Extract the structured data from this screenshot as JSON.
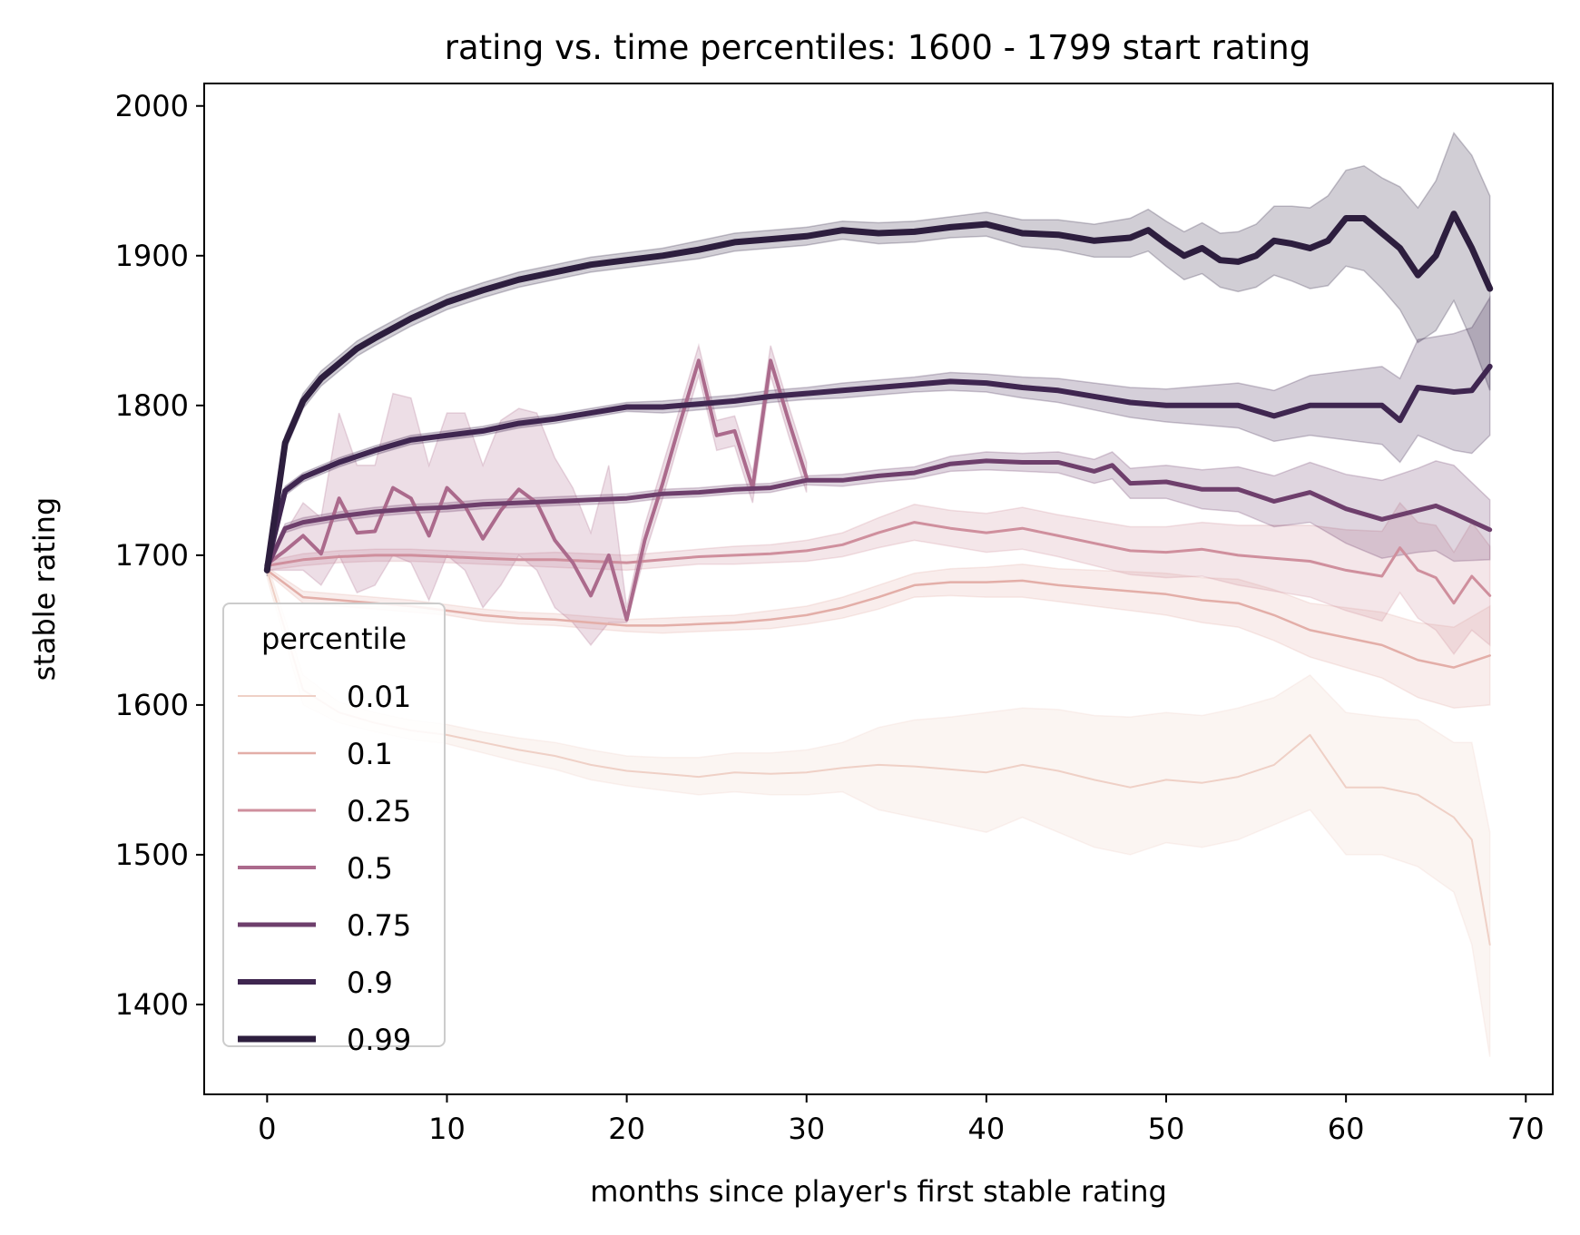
{
  "chart_data": {
    "type": "line",
    "title": "rating vs. time percentiles: 1600 - 1799 start rating",
    "xlabel": "months since player's first stable rating",
    "ylabel": "stable rating",
    "xlim": [
      -3.5,
      71.5
    ],
    "ylim": [
      1340,
      2015
    ],
    "x_ticks": [
      0,
      10,
      20,
      30,
      40,
      50,
      60,
      70
    ],
    "y_ticks": [
      1400,
      1500,
      1600,
      1700,
      1800,
      1900,
      2000
    ],
    "grid": false,
    "legend": {
      "title": "percentile",
      "placement": "lower-left"
    },
    "series": [
      {
        "name": "0.01",
        "color": "#efd0c6",
        "width": 2.0,
        "x": [
          0,
          2,
          4,
          6,
          8,
          10,
          12,
          14,
          16,
          18,
          20,
          22,
          24,
          26,
          28,
          30,
          32,
          34,
          36,
          38,
          40,
          42,
          44,
          46,
          48,
          50,
          52,
          54,
          56,
          58,
          60,
          62,
          64,
          66,
          67,
          68
        ],
        "y": [
          1690,
          1610,
          1595,
          1588,
          1583,
          1580,
          1575,
          1570,
          1566,
          1560,
          1556,
          1554,
          1552,
          1555,
          1554,
          1555,
          1558,
          1560,
          1559,
          1557,
          1555,
          1560,
          1556,
          1550,
          1545,
          1550,
          1548,
          1552,
          1560,
          1580,
          1545,
          1545,
          1540,
          1525,
          1510,
          1440
        ],
        "band_lo": [
          1685,
          1600,
          1588,
          1582,
          1577,
          1574,
          1568,
          1562,
          1557,
          1550,
          1546,
          1543,
          1540,
          1542,
          1540,
          1540,
          1542,
          1530,
          1525,
          1520,
          1515,
          1525,
          1515,
          1505,
          1500,
          1508,
          1505,
          1510,
          1520,
          1530,
          1500,
          1500,
          1492,
          1475,
          1440,
          1365
        ],
        "band_hi": [
          1695,
          1620,
          1602,
          1595,
          1590,
          1587,
          1582,
          1578,
          1575,
          1570,
          1566,
          1565,
          1565,
          1568,
          1568,
          1570,
          1575,
          1585,
          1590,
          1592,
          1595,
          1598,
          1597,
          1593,
          1592,
          1595,
          1593,
          1598,
          1605,
          1620,
          1595,
          1592,
          1590,
          1575,
          1575,
          1515
        ]
      },
      {
        "name": "0.1",
        "color": "#e3aea8",
        "width": 2.5,
        "x": [
          0,
          2,
          4,
          6,
          8,
          10,
          12,
          14,
          16,
          18,
          20,
          22,
          24,
          26,
          28,
          30,
          32,
          34,
          36,
          38,
          40,
          42,
          44,
          46,
          48,
          50,
          52,
          54,
          56,
          58,
          60,
          62,
          64,
          66,
          68
        ],
        "y": [
          1690,
          1672,
          1670,
          1668,
          1666,
          1663,
          1660,
          1658,
          1657,
          1655,
          1653,
          1653,
          1654,
          1655,
          1657,
          1660,
          1665,
          1672,
          1680,
          1682,
          1682,
          1683,
          1680,
          1678,
          1676,
          1674,
          1670,
          1668,
          1660,
          1650,
          1645,
          1640,
          1630,
          1625,
          1633
        ],
        "band_lo": [
          1688,
          1668,
          1666,
          1664,
          1662,
          1660,
          1656,
          1654,
          1653,
          1651,
          1649,
          1648,
          1649,
          1650,
          1651,
          1654,
          1658,
          1664,
          1672,
          1673,
          1672,
          1672,
          1669,
          1666,
          1663,
          1660,
          1655,
          1652,
          1643,
          1632,
          1625,
          1618,
          1605,
          1598,
          1600
        ],
        "band_hi": [
          1692,
          1676,
          1674,
          1672,
          1670,
          1667,
          1664,
          1662,
          1661,
          1659,
          1657,
          1658,
          1659,
          1660,
          1663,
          1666,
          1672,
          1680,
          1688,
          1691,
          1692,
          1694,
          1691,
          1690,
          1689,
          1688,
          1685,
          1684,
          1677,
          1668,
          1665,
          1662,
          1655,
          1652,
          1666
        ]
      },
      {
        "name": "0.25",
        "color": "#cf8f9d",
        "width": 3.0,
        "x": [
          0,
          2,
          4,
          6,
          8,
          10,
          12,
          14,
          16,
          18,
          20,
          22,
          24,
          26,
          28,
          30,
          32,
          34,
          36,
          38,
          40,
          42,
          44,
          46,
          48,
          50,
          52,
          54,
          56,
          58,
          60,
          62,
          63,
          64,
          65,
          66,
          67,
          68
        ],
        "y": [
          1693,
          1697,
          1699,
          1700,
          1700,
          1699,
          1698,
          1697,
          1697,
          1696,
          1695,
          1697,
          1699,
          1700,
          1701,
          1703,
          1707,
          1715,
          1722,
          1718,
          1715,
          1718,
          1713,
          1708,
          1703,
          1702,
          1704,
          1700,
          1698,
          1696,
          1690,
          1686,
          1705,
          1690,
          1685,
          1668,
          1686,
          1673
        ],
        "band_lo": [
          1690,
          1693,
          1695,
          1696,
          1696,
          1695,
          1694,
          1693,
          1692,
          1691,
          1690,
          1692,
          1694,
          1694,
          1695,
          1696,
          1699,
          1705,
          1710,
          1706,
          1702,
          1704,
          1699,
          1693,
          1687,
          1685,
          1686,
          1680,
          1676,
          1672,
          1663,
          1656,
          1675,
          1658,
          1650,
          1634,
          1650,
          1640
        ],
        "band_hi": [
          1696,
          1701,
          1703,
          1704,
          1704,
          1703,
          1702,
          1701,
          1702,
          1701,
          1700,
          1702,
          1704,
          1706,
          1707,
          1710,
          1715,
          1725,
          1734,
          1730,
          1728,
          1732,
          1727,
          1723,
          1719,
          1719,
          1722,
          1720,
          1720,
          1720,
          1717,
          1716,
          1735,
          1722,
          1720,
          1702,
          1722,
          1706
        ]
      },
      {
        "name": "0.5",
        "color": "#ab6a8c",
        "width": 4.0,
        "x": [
          0,
          1,
          2,
          3,
          4,
          5,
          6,
          7,
          8,
          9,
          10,
          11,
          12,
          13,
          14,
          15,
          16,
          17,
          18,
          19,
          20,
          21,
          22,
          23,
          24,
          25,
          26,
          27,
          28,
          29,
          30
        ],
        "y": [
          1694,
          1703,
          1713,
          1701,
          1738,
          1715,
          1716,
          1745,
          1738,
          1713,
          1745,
          1733,
          1711,
          1730,
          1744,
          1735,
          1710,
          1695,
          1673,
          1700,
          1657,
          1710,
          1748,
          1790,
          1830,
          1780,
          1783,
          1745,
          1830,
          1790,
          1752
        ],
        "band_lo": [
          1690,
          1690,
          1690,
          1680,
          1700,
          1675,
          1680,
          1700,
          1695,
          1670,
          1700,
          1690,
          1665,
          1680,
          1700,
          1690,
          1665,
          1655,
          1640,
          1655,
          1655,
          1700,
          1738,
          1780,
          1820,
          1770,
          1773,
          1735,
          1820,
          1780,
          1742
        ],
        "band_hi": [
          1698,
          1715,
          1735,
          1725,
          1795,
          1760,
          1760,
          1808,
          1805,
          1760,
          1795,
          1795,
          1760,
          1790,
          1798,
          1795,
          1765,
          1745,
          1715,
          1760,
          1665,
          1720,
          1760,
          1800,
          1840,
          1790,
          1793,
          1755,
          1840,
          1800,
          1762
        ]
      },
      {
        "name": "0.75",
        "color": "#6e3f6c",
        "width": 5.0,
        "x": [
          0,
          1,
          2,
          4,
          6,
          8,
          10,
          12,
          14,
          16,
          18,
          20,
          22,
          24,
          26,
          28,
          30,
          32,
          34,
          36,
          38,
          40,
          42,
          44,
          46,
          47,
          48,
          50,
          52,
          54,
          56,
          58,
          60,
          62,
          64,
          65,
          66,
          68
        ],
        "y": [
          1692,
          1718,
          1722,
          1726,
          1729,
          1731,
          1732,
          1734,
          1735,
          1736,
          1737,
          1738,
          1741,
          1742,
          1744,
          1745,
          1750,
          1750,
          1753,
          1755,
          1761,
          1763,
          1762,
          1762,
          1756,
          1760,
          1748,
          1749,
          1744,
          1744,
          1736,
          1742,
          1731,
          1724,
          1730,
          1733,
          1728,
          1717
        ],
        "band_lo": [
          1689,
          1715,
          1719,
          1723,
          1726,
          1728,
          1729,
          1731,
          1732,
          1733,
          1734,
          1735,
          1738,
          1739,
          1741,
          1742,
          1747,
          1746,
          1749,
          1751,
          1756,
          1757,
          1756,
          1755,
          1748,
          1751,
          1738,
          1738,
          1731,
          1729,
          1719,
          1722,
          1708,
          1698,
          1702,
          1703,
          1696,
          1697
        ],
        "band_hi": [
          1695,
          1721,
          1725,
          1729,
          1732,
          1734,
          1735,
          1737,
          1738,
          1739,
          1740,
          1741,
          1744,
          1745,
          1747,
          1748,
          1753,
          1754,
          1757,
          1759,
          1766,
          1769,
          1768,
          1769,
          1764,
          1769,
          1758,
          1760,
          1757,
          1759,
          1753,
          1762,
          1754,
          1750,
          1758,
          1763,
          1760,
          1737
        ]
      },
      {
        "name": "0.9",
        "color": "#3f2650",
        "width": 6.0,
        "x": [
          0,
          1,
          2,
          4,
          6,
          8,
          10,
          12,
          14,
          16,
          18,
          20,
          22,
          24,
          26,
          28,
          30,
          32,
          34,
          36,
          38,
          40,
          42,
          44,
          46,
          48,
          50,
          52,
          54,
          56,
          58,
          60,
          62,
          63,
          64,
          66,
          67,
          68
        ],
        "y": [
          1693,
          1743,
          1752,
          1762,
          1770,
          1777,
          1780,
          1783,
          1788,
          1791,
          1795,
          1799,
          1799,
          1801,
          1803,
          1806,
          1808,
          1810,
          1812,
          1814,
          1816,
          1815,
          1812,
          1810,
          1806,
          1802,
          1800,
          1800,
          1800,
          1793,
          1800,
          1800,
          1800,
          1790,
          1812,
          1809,
          1810,
          1826
        ],
        "band_lo": [
          1690,
          1740,
          1749,
          1759,
          1767,
          1774,
          1777,
          1780,
          1785,
          1788,
          1792,
          1796,
          1795,
          1797,
          1799,
          1802,
          1804,
          1805,
          1807,
          1809,
          1810,
          1809,
          1805,
          1802,
          1797,
          1792,
          1789,
          1787,
          1785,
          1776,
          1780,
          1777,
          1774,
          1762,
          1780,
          1770,
          1768,
          1780
        ],
        "band_hi": [
          1696,
          1746,
          1755,
          1765,
          1773,
          1780,
          1783,
          1786,
          1791,
          1794,
          1798,
          1802,
          1803,
          1805,
          1807,
          1810,
          1812,
          1815,
          1817,
          1819,
          1822,
          1821,
          1819,
          1818,
          1815,
          1812,
          1811,
          1813,
          1815,
          1810,
          1820,
          1823,
          1826,
          1818,
          1844,
          1848,
          1852,
          1872
        ]
      },
      {
        "name": "0.99",
        "color": "#2d1e3e",
        "width": 7.0,
        "x": [
          0,
          1,
          2,
          3,
          4,
          5,
          6,
          8,
          10,
          12,
          14,
          16,
          18,
          20,
          22,
          24,
          26,
          28,
          30,
          32,
          34,
          36,
          38,
          40,
          42,
          44,
          46,
          48,
          49,
          50,
          51,
          52,
          53,
          54,
          55,
          56,
          57,
          58,
          59,
          60,
          61,
          62,
          63,
          64,
          65,
          66,
          67,
          68
        ],
        "y": [
          1690,
          1775,
          1803,
          1818,
          1828,
          1838,
          1845,
          1858,
          1869,
          1877,
          1884,
          1889,
          1894,
          1897,
          1900,
          1904,
          1909,
          1911,
          1913,
          1917,
          1915,
          1916,
          1919,
          1921,
          1915,
          1914,
          1910,
          1912,
          1917,
          1908,
          1900,
          1905,
          1897,
          1896,
          1900,
          1910,
          1908,
          1905,
          1910,
          1925,
          1925,
          1915,
          1905,
          1887,
          1900,
          1928,
          1905,
          1878
        ],
        "band_lo": [
          1686,
          1770,
          1798,
          1813,
          1823,
          1833,
          1840,
          1853,
          1864,
          1872,
          1879,
          1884,
          1889,
          1892,
          1895,
          1898,
          1903,
          1905,
          1907,
          1911,
          1908,
          1909,
          1912,
          1913,
          1906,
          1904,
          1899,
          1899,
          1903,
          1893,
          1884,
          1888,
          1879,
          1876,
          1879,
          1887,
          1883,
          1878,
          1880,
          1893,
          1890,
          1878,
          1864,
          1842,
          1850,
          1870,
          1843,
          1810
        ],
        "band_hi": [
          1694,
          1780,
          1808,
          1823,
          1833,
          1843,
          1850,
          1863,
          1874,
          1882,
          1889,
          1894,
          1899,
          1902,
          1905,
          1910,
          1915,
          1917,
          1919,
          1923,
          1922,
          1923,
          1926,
          1929,
          1924,
          1924,
          1921,
          1925,
          1931,
          1923,
          1916,
          1922,
          1915,
          1916,
          1921,
          1933,
          1933,
          1932,
          1940,
          1957,
          1960,
          1952,
          1946,
          1932,
          1950,
          1982,
          1967,
          1940
        ]
      }
    ]
  }
}
